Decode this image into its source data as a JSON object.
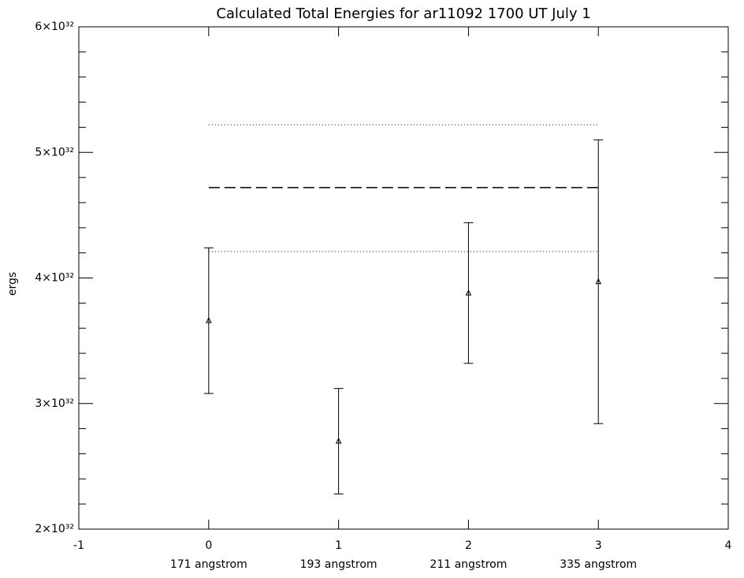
{
  "chart_data": {
    "type": "errorbar",
    "title": "Calculated Total Energies for ar11092 1700 UT July 1",
    "y_label": "ergs",
    "x": [
      0,
      1,
      2,
      3
    ],
    "categories": [
      "171 angstrom",
      "193 angstrom",
      "211 angstrom",
      "335 angstrom"
    ],
    "values": [
      3.66e+32,
      2.7e+32,
      3.88e+32,
      3.97e+32
    ],
    "errors": [
      5.8e+31,
      4.2e+31,
      5.6e+31,
      1.13e+32
    ],
    "color": "#000000",
    "hlines": [
      {
        "value": 4.72e+32,
        "style": "dashed"
      },
      {
        "value": 5.22e+32,
        "style": "dotted"
      },
      {
        "value": 4.21e+32,
        "style": "dotted"
      }
    ],
    "xlim": [
      -1,
      4
    ],
    "xticks": [
      -1,
      0,
      1,
      2,
      3,
      4
    ],
    "ylim": [
      2e+32,
      6e+32
    ],
    "yticks": [
      {
        "value": 2e+32,
        "label": "2×10³²"
      },
      {
        "value": 3e+32,
        "label": "3×10³²"
      },
      {
        "value": 4e+32,
        "label": "4×10³²"
      },
      {
        "value": 5e+32,
        "label": "5×10³²"
      },
      {
        "value": 6e+32,
        "label": "6×10³²"
      }
    ],
    "yminor": 5
  }
}
